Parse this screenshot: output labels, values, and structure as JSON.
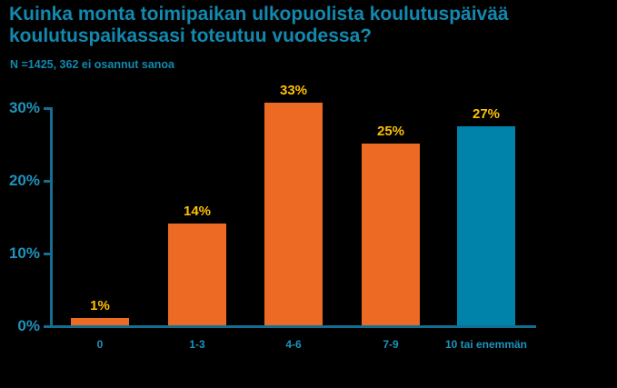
{
  "header": {
    "title": "Kuinka monta toimipaikan ulkopuolista koulutuspäivää koulutuspaikassasi toteutuu vuodessa?",
    "subtitle": "N =1425, 362 ei osannut sanoa"
  },
  "colors": {
    "background": "#000000",
    "title_text": "#1289AF",
    "subtitle_text": "#1289AF",
    "axis_line": "#136F92",
    "tick_label": "#1E93BB",
    "category_label": "#1E93BB",
    "value_label": "#FFC000",
    "bar_orange": "#EC6A23",
    "bar_blue": "#0083AB"
  },
  "chart_data": {
    "type": "bar",
    "title": "Kuinka monta toimipaikan ulkopuolista koulutuspäivää koulutuspaikassasi toteutuu vuodessa?",
    "subtitle": "N =1425, 362 ei osannut sanoa",
    "categories": [
      "0",
      "1-3",
      "4-6",
      "7-9",
      "10 tai enemmän"
    ],
    "values": [
      1,
      14,
      33,
      25,
      27
    ],
    "value_labels": [
      "1%",
      "14%",
      "33%",
      "25%",
      "27%"
    ],
    "bar_display_heights_pct": [
      1,
      14,
      30.6,
      25,
      27.4
    ],
    "bar_colors": [
      "#EC6A23",
      "#EC6A23",
      "#EC6A23",
      "#EC6A23",
      "#0083AB"
    ],
    "yticks": [
      "0%",
      "10%",
      "20%",
      "30%"
    ],
    "ylim": [
      0,
      30
    ],
    "ylabel": "",
    "xlabel": "",
    "grid": false,
    "legend": null
  }
}
